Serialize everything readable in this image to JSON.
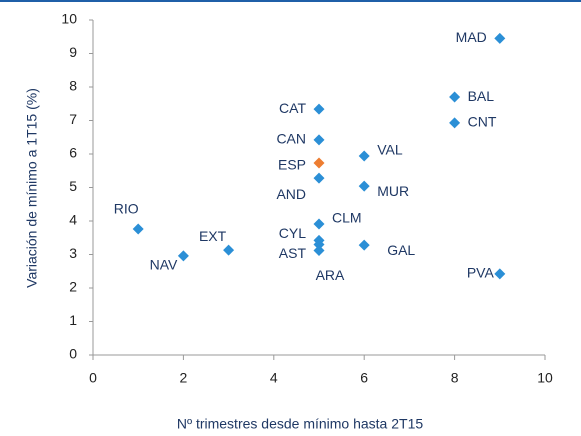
{
  "chart_data": {
    "type": "scatter",
    "x_label": "Nº trimestres desde mínimo hasta 2T15",
    "y_label": "Variación de mínimo a 1T15 (%)",
    "xlim": [
      0,
      10
    ],
    "xticks": [
      0,
      2,
      4,
      6,
      8,
      10
    ],
    "ylim": [
      0,
      10
    ],
    "yticks": [
      0,
      1,
      2,
      3,
      4,
      5,
      6,
      7,
      8,
      9,
      10
    ],
    "points": [
      {
        "label": "MAD",
        "x": 9,
        "y": 9.45,
        "color": "#2b8fd6"
      },
      {
        "label": "BAL",
        "x": 8,
        "y": 7.7,
        "color": "#2b8fd6"
      },
      {
        "label": "CNT",
        "x": 8,
        "y": 6.93,
        "color": "#2b8fd6"
      },
      {
        "label": "PVA",
        "x": 9,
        "y": 2.42,
        "color": "#2b8fd6"
      },
      {
        "label": "CAT",
        "x": 5,
        "y": 7.34,
        "color": "#2b8fd6"
      },
      {
        "label": "CAN",
        "x": 5,
        "y": 6.42,
        "color": "#2b8fd6"
      },
      {
        "label": "ESP",
        "x": 5,
        "y": 5.73,
        "color": "#ed7d31"
      },
      {
        "label": "AND",
        "x": 5,
        "y": 5.28,
        "color": "#2b8fd6"
      },
      {
        "label": "VAL",
        "x": 6,
        "y": 5.94,
        "color": "#2b8fd6"
      },
      {
        "label": "MUR",
        "x": 6,
        "y": 5.04,
        "color": "#2b8fd6"
      },
      {
        "label": "CLM",
        "x": 5,
        "y": 3.91,
        "color": "#2b8fd6"
      },
      {
        "label": "CYL",
        "x": 5,
        "y": 3.42,
        "color": "#2b8fd6"
      },
      {
        "label": "AST",
        "x": 5,
        "y": 3.3,
        "color": "#2b8fd6"
      },
      {
        "label": "ARA",
        "x": 5,
        "y": 3.12,
        "color": "#2b8fd6"
      },
      {
        "label": "GAL",
        "x": 6,
        "y": 3.28,
        "color": "#2b8fd6"
      },
      {
        "label": "RIO",
        "x": 1,
        "y": 3.76,
        "color": "#2b8fd6"
      },
      {
        "label": "NAV",
        "x": 2,
        "y": 2.96,
        "color": "#2b8fd6"
      },
      {
        "label": "EXT",
        "x": 3,
        "y": 3.13,
        "color": "#2b8fd6"
      }
    ]
  }
}
